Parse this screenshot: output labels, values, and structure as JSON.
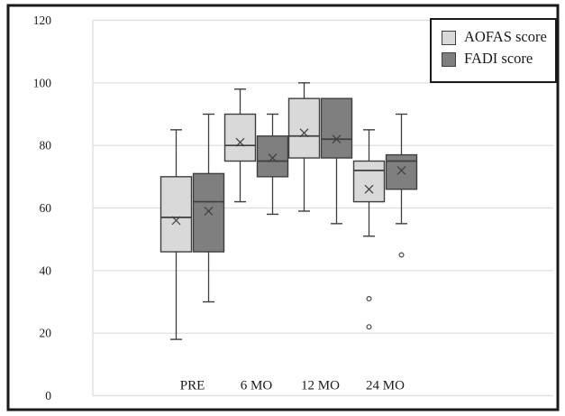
{
  "chart_data": {
    "type": "boxplot",
    "title": "",
    "categories": [
      "PRE",
      "6 MO",
      "12 MO",
      "24 MO"
    ],
    "xlabel": "",
    "ylabel": "",
    "y_axis": {
      "min": 0,
      "max": 120,
      "tick_interval": 20,
      "ticks": [
        0,
        20,
        40,
        60,
        80,
        100,
        120
      ]
    },
    "grid": "horizontal-light",
    "legend_position": "top-right-inside",
    "colors": {
      "aofas_fill": "#d9d9d9",
      "fadi_fill": "#7f7f7f",
      "box_border": "#3f3f3f",
      "gridline": "#dcdcdc",
      "text": "#1a1a1a",
      "frame": "#1a1a1a",
      "background": "#ffffff"
    },
    "series": [
      {
        "name": "AOFAS score",
        "color": "#d9d9d9",
        "boxes": [
          {
            "category": "PRE",
            "whisker_low": 18,
            "q1": 46,
            "median": 57,
            "mean": 56,
            "q3": 70,
            "whisker_high": 85,
            "outliers": []
          },
          {
            "category": "6 MO",
            "whisker_low": 62,
            "q1": 75,
            "median": 80,
            "mean": 81,
            "q3": 90,
            "whisker_high": 98,
            "outliers": []
          },
          {
            "category": "12 MO",
            "whisker_low": 59,
            "q1": 76,
            "median": 83,
            "mean": 84,
            "q3": 95,
            "whisker_high": 100,
            "outliers": []
          },
          {
            "category": "24 MO",
            "whisker_low": 51,
            "q1": 62,
            "median": 72,
            "mean": 66,
            "q3": 75,
            "whisker_high": 85,
            "outliers": [
              31,
              22
            ]
          }
        ]
      },
      {
        "name": "FADI score",
        "color": "#7f7f7f",
        "boxes": [
          {
            "category": "PRE",
            "whisker_low": 30,
            "q1": 46,
            "median": 62,
            "mean": 59,
            "q3": 71,
            "whisker_high": 90,
            "outliers": []
          },
          {
            "category": "6 MO",
            "whisker_low": 58,
            "q1": 70,
            "median": 75,
            "mean": 76,
            "q3": 83,
            "whisker_high": 90,
            "outliers": []
          },
          {
            "category": "12 MO",
            "whisker_low": 55,
            "q1": 76,
            "median": 82,
            "mean": 82,
            "q3": 95,
            "whisker_high": 95,
            "outliers": []
          },
          {
            "category": "24 MO",
            "whisker_low": 55,
            "q1": 66,
            "median": 75,
            "mean": 72,
            "q3": 77,
            "whisker_high": 90,
            "outliers": [
              45
            ]
          }
        ]
      }
    ]
  },
  "legend": {
    "items": [
      {
        "label": "AOFAS score"
      },
      {
        "label": "FADI score"
      }
    ]
  }
}
